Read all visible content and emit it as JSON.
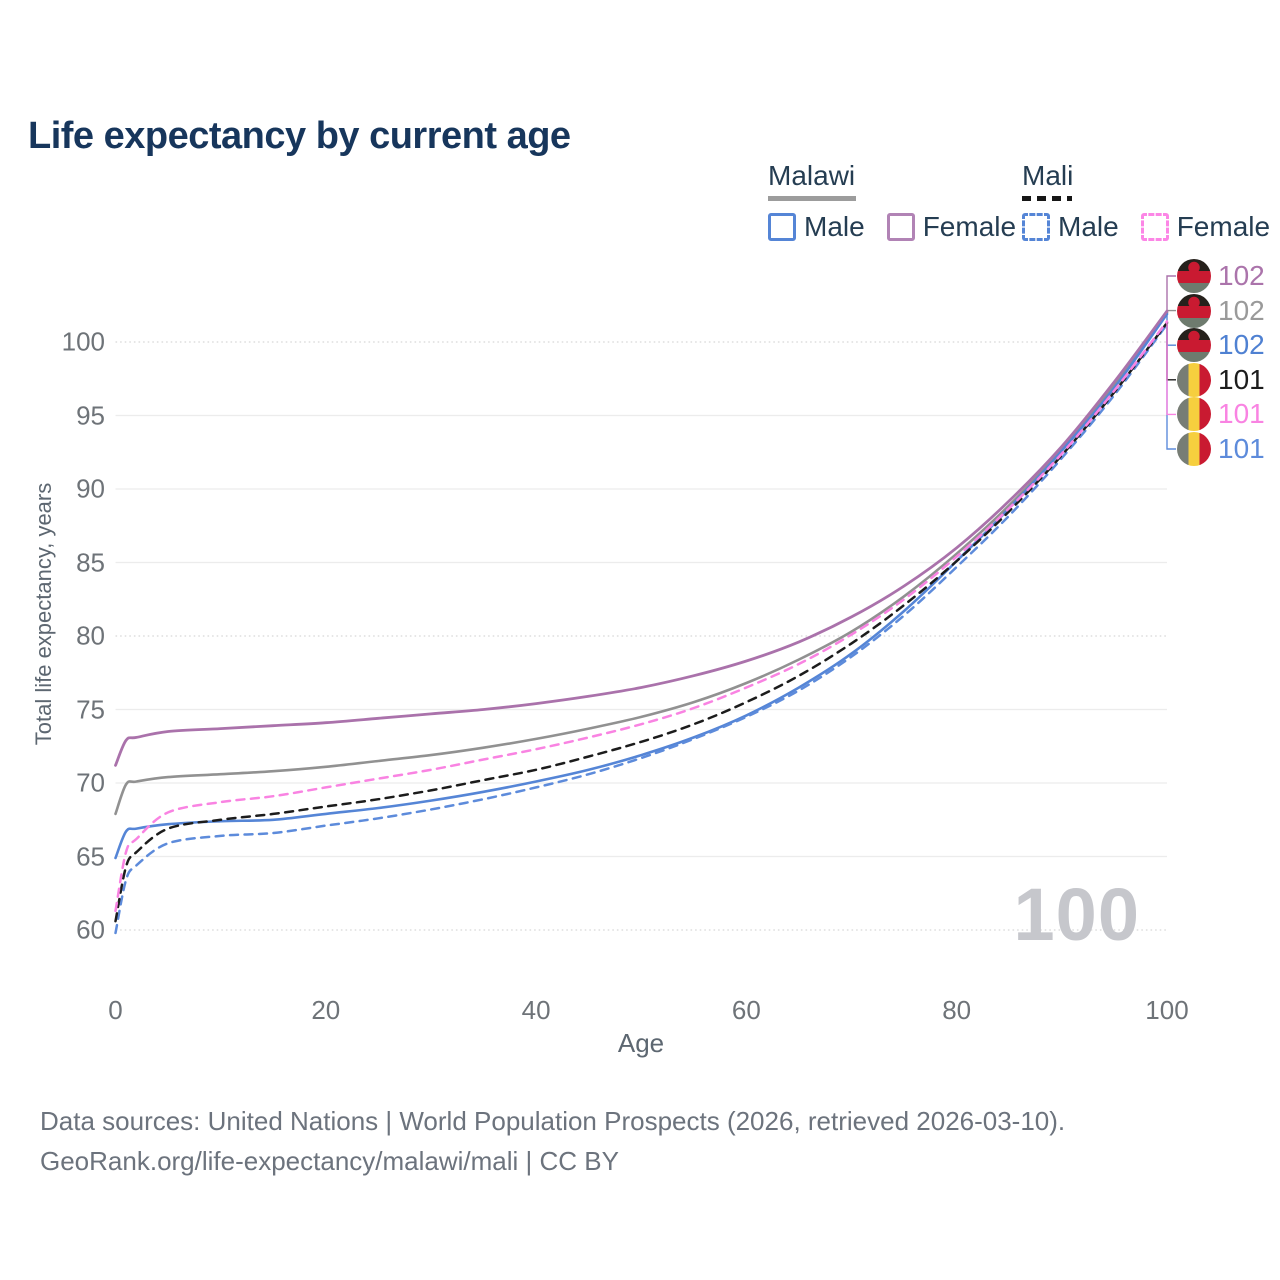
{
  "title": "Life expectancy by current age",
  "legend": {
    "groups": [
      {
        "name": "Malawi",
        "style": "solid",
        "line_color": "#9c9c9c",
        "items": [
          {
            "label": "Male",
            "color": "#5585d6"
          },
          {
            "label": "Female",
            "color": "#b183b5"
          }
        ]
      },
      {
        "name": "Mali",
        "style": "dashed",
        "line_color": "#161616",
        "items": [
          {
            "label": "Male",
            "color": "#5585d6"
          },
          {
            "label": "Female",
            "color": "#fc86e6"
          }
        ]
      }
    ]
  },
  "axes": {
    "y_title": "Total life expectancy, years",
    "x_title": "Age",
    "y_ticks": [
      60,
      65,
      70,
      75,
      80,
      85,
      90,
      95,
      100
    ],
    "x_ticks": [
      0,
      20,
      40,
      60,
      80,
      100
    ]
  },
  "watermark": "100",
  "footer": {
    "line1": "Data sources: United Nations | World Population Prospects (2026, retrieved 2026-03-10).",
    "line2": "GeoRank.org/life-expectancy/malawi/mali | CC BY"
  },
  "right_labels": [
    {
      "value": "102",
      "flag": "malawi",
      "color": "#ab74ab"
    },
    {
      "value": "102",
      "flag": "malawi",
      "color": "#9a9a9a"
    },
    {
      "value": "102",
      "flag": "malawi",
      "color": "#4f81d2"
    },
    {
      "value": "101",
      "flag": "mali",
      "color": "#1c1c1c"
    },
    {
      "value": "101",
      "flag": "mali",
      "color": "#f983e2"
    },
    {
      "value": "101",
      "flag": "mali",
      "color": "#5d8bdb"
    }
  ],
  "chart_data": {
    "type": "line",
    "title": "Life expectancy by current age",
    "xlabel": "Age",
    "ylabel": "Total life expectancy, years",
    "xlim": [
      0,
      100
    ],
    "ylim": [
      60,
      100
    ],
    "grid": "horizontal only; lines at 60, 80, 100 dotted, others solid",
    "legend_position": "top-right, grouped by country (Malawi solid, Mali dashed)",
    "x": [
      0,
      1,
      2,
      5,
      10,
      15,
      20,
      25,
      30,
      35,
      40,
      45,
      50,
      55,
      60,
      65,
      70,
      75,
      80,
      85,
      90,
      95,
      100
    ],
    "series": [
      {
        "name": "Malawi",
        "sex": "both",
        "style": "solid",
        "color": "#919191",
        "width": 2.6,
        "end_label": "102",
        "label_row": 1,
        "values": [
          67.9,
          69.9,
          70.1,
          70.4,
          70.6,
          70.8,
          71.1,
          71.5,
          71.9,
          72.4,
          73.0,
          73.7,
          74.5,
          75.5,
          76.8,
          78.4,
          80.3,
          82.7,
          85.6,
          88.9,
          92.7,
          97.1,
          102.0
        ]
      },
      {
        "name": "Malawi Male",
        "sex": "male",
        "style": "solid",
        "color": "#5585d6",
        "width": 2.6,
        "end_label": "102",
        "label_row": 2,
        "values": [
          64.9,
          66.7,
          66.9,
          67.2,
          67.4,
          67.5,
          67.9,
          68.3,
          68.8,
          69.4,
          70.1,
          70.9,
          71.9,
          73.1,
          74.6,
          76.5,
          78.8,
          81.7,
          85.1,
          88.7,
          92.6,
          96.9,
          101.9
        ]
      },
      {
        "name": "Malawi Female",
        "sex": "female",
        "style": "solid",
        "color": "#aa72ab",
        "width": 2.8,
        "end_label": "102",
        "label_row": 0,
        "values": [
          71.2,
          72.9,
          73.1,
          73.5,
          73.7,
          73.9,
          74.1,
          74.4,
          74.7,
          75.0,
          75.4,
          75.9,
          76.5,
          77.3,
          78.3,
          79.6,
          81.3,
          83.4,
          86.0,
          89.2,
          92.9,
          97.3,
          102.1
        ]
      },
      {
        "name": "Mali Male",
        "sex": "male",
        "style": "dashed",
        "color": "#5d8bdb",
        "width": 2.5,
        "end_label": "101",
        "label_row": 5,
        "values": [
          59.8,
          63.4,
          64.4,
          65.9,
          66.4,
          66.6,
          67.1,
          67.6,
          68.2,
          68.9,
          69.7,
          70.6,
          71.7,
          73.0,
          74.5,
          76.3,
          78.6,
          81.4,
          84.7,
          88.2,
          92.1,
          96.4,
          101.2
        ]
      },
      {
        "name": "Mali",
        "sex": "both",
        "style": "dashed",
        "color": "#1c1c1c",
        "width": 2.5,
        "end_label": "101",
        "label_row": 3,
        "values": [
          60.6,
          64.3,
          65.3,
          66.9,
          67.5,
          67.9,
          68.4,
          68.9,
          69.5,
          70.2,
          70.9,
          71.8,
          72.8,
          74.0,
          75.5,
          77.3,
          79.5,
          82.1,
          85.1,
          88.5,
          92.3,
          96.6,
          101.3
        ]
      },
      {
        "name": "Mali Female",
        "sex": "female",
        "style": "dashed",
        "color": "#f983e2",
        "width": 2.5,
        "end_label": "101",
        "label_row": 4,
        "values": [
          61.3,
          65.3,
          66.2,
          68.0,
          68.7,
          69.1,
          69.7,
          70.3,
          70.9,
          71.6,
          72.3,
          73.1,
          74.0,
          75.1,
          76.5,
          78.1,
          80.1,
          82.5,
          85.4,
          88.7,
          92.4,
          96.7,
          101.4
        ]
      }
    ]
  }
}
